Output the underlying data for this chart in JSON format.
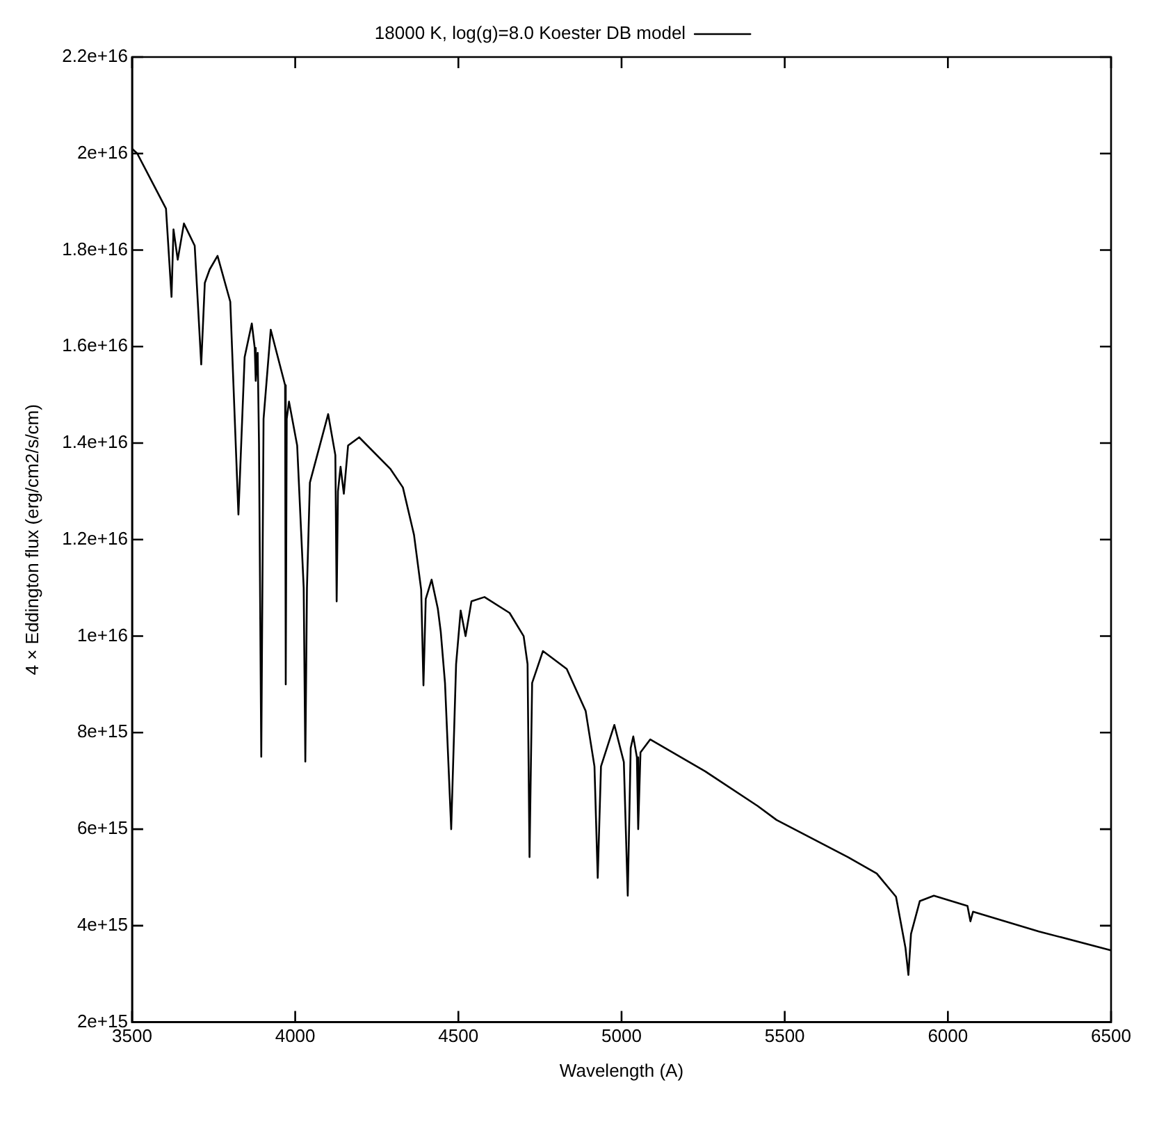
{
  "chart_data": {
    "type": "line",
    "xlabel": "Wavelength (A)",
    "ylabel": "4 × Eddington flux (erg/cm2/s/cm)",
    "legend": "top",
    "grid": false,
    "marker": "none",
    "line_style": "solid",
    "xlim": [
      3500,
      6500
    ],
    "xticks": [
      3500,
      4000,
      4500,
      5000,
      5500,
      6000,
      6500
    ],
    "ylim": [
      2000000000000000.0,
      2.2e+16
    ],
    "yticks": [
      {
        "value": 2000000000000000.0,
        "label": "2e+15"
      },
      {
        "value": 4000000000000000.0,
        "label": "4e+15"
      },
      {
        "value": 6000000000000000.0,
        "label": "6e+15"
      },
      {
        "value": 8000000000000000.0,
        "label": "8e+15"
      },
      {
        "value": 1e+16,
        "label": "1e+16"
      },
      {
        "value": 1.2e+16,
        "label": "1.2e+16"
      },
      {
        "value": 1.4e+16,
        "label": "1.4e+16"
      },
      {
        "value": 1.6e+16,
        "label": "1.6e+16"
      },
      {
        "value": 1.8e+16,
        "label": "1.8e+16"
      },
      {
        "value": 2e+16,
        "label": "2e+16"
      },
      {
        "value": 2.2e+16,
        "label": "2.2e+16"
      }
    ],
    "series": [
      {
        "name": "18000 K, log(g)=8.0 Koester DB model",
        "color": "#000000",
        "x": [
          3500,
          3516,
          3604,
          3621,
          3627,
          3640,
          3659,
          3692,
          3712,
          3723,
          3738,
          3762,
          3801,
          3826,
          3845,
          3867,
          3876,
          3879,
          3885,
          3889,
          3896,
          3903,
          3925,
          3969,
          3971,
          3974,
          3981,
          4006,
          4026,
          4031,
          4036,
          4045,
          4101,
          4123,
          4127,
          4131,
          4139,
          4149,
          4162,
          4196,
          4291,
          4330,
          4364,
          4386,
          4393,
          4400,
          4418,
          4437,
          4446,
          4459,
          4478,
          4493,
          4507,
          4522,
          4540,
          4580,
          4657,
          4700,
          4712,
          4718,
          4726,
          4759,
          4832,
          4890,
          4917,
          4927,
          4937,
          4978,
          5007,
          5019,
          5028,
          5036,
          5047,
          5051,
          5058,
          5088,
          5256,
          5417,
          5475,
          5694,
          5782,
          5841,
          5870,
          5879,
          5887,
          5914,
          5957,
          6060,
          6069,
          6077,
          6279,
          6499
        ],
        "values": [
          2.01e+16,
          2e+16,
          1.886e+16,
          1.703e+16,
          1.843e+16,
          1.78e+16,
          1.855e+16,
          1.809e+16,
          1.563e+16,
          1.732e+16,
          1.76e+16,
          1.788e+16,
          1.693e+16,
          1.252e+16,
          1.578e+16,
          1.648e+16,
          1.597e+16,
          1.529e+16,
          1.587e+16,
          1.4e+16,
          7500000000000000.0,
          1.45e+16,
          1.635e+16,
          1.52e+16,
          9000000000000000.0,
          1.45e+16,
          1.486e+16,
          1.395e+16,
          1.1e+16,
          7400000000000000.0,
          1.1e+16,
          1.318e+16,
          1.46e+16,
          1.375e+16,
          1.072e+16,
          1.3e+16,
          1.351e+16,
          1.295e+16,
          1.395e+16,
          1.412e+16,
          1.347e+16,
          1.308e+16,
          1.21e+16,
          1.096e+16,
          8980000000000000.0,
          1.077e+16,
          1.117e+16,
          1.057e+16,
          1.009e+16,
          9030000000000000.0,
          6000000000000000.0,
          9420000000000000.0,
          1.053e+16,
          1e+16,
          1.072e+16,
          1.081e+16,
          1.048e+16,
          1e+16,
          9420000000000000.0,
          5420000000000000.0,
          9030000000000000.0,
          9690000000000000.0,
          9320000000000000.0,
          8450000000000000.0,
          7300000000000000.0,
          4990000000000000.0,
          7300000000000000.0,
          8160000000000000.0,
          7390000000000000.0,
          4620000000000000.0,
          7680000000000000.0,
          7920000000000000.0,
          7490000000000000.0,
          6000000000000000.0,
          7590000000000000.0,
          7860000000000000.0,
          7200000000000000.0,
          6480000000000000.0,
          6190000000000000.0,
          5420000000000000.0,
          5080000000000000.0,
          4600000000000000.0,
          3540000000000000.0,
          2980000000000000.0,
          3830000000000000.0,
          4510000000000000.0,
          4620000000000000.0,
          4410000000000000.0,
          4090000000000000.0,
          4290000000000000.0,
          3880000000000000.0,
          3490000000000000.0
        ]
      }
    ]
  }
}
